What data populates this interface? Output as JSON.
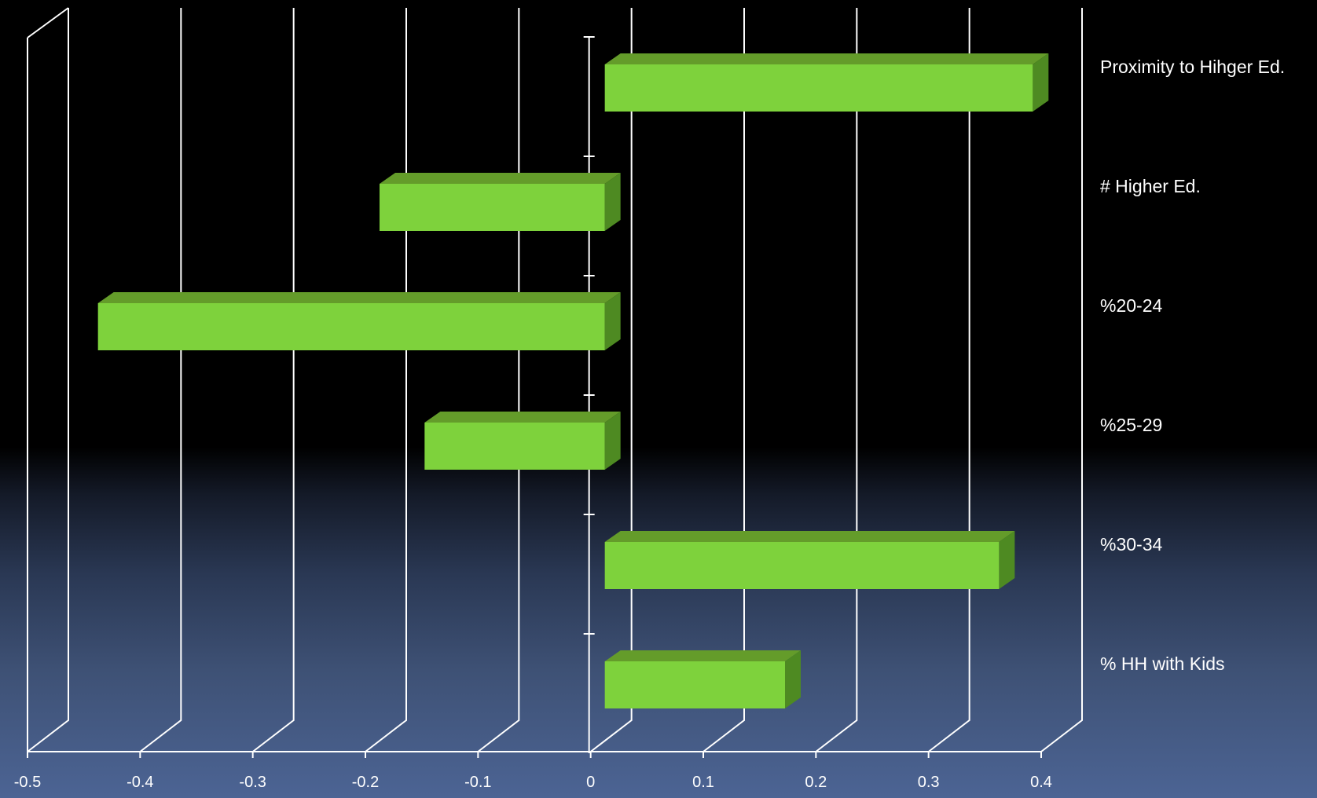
{
  "chart_data": {
    "type": "bar",
    "orientation": "horizontal",
    "style": "3d",
    "categories": [
      "Proximity to Hihger Ed.",
      "# Higher Ed.",
      "%20-24",
      "%25-29",
      "%30-34",
      "% HH with Kids"
    ],
    "values": [
      0.38,
      -0.2,
      -0.45,
      -0.16,
      0.35,
      0.16
    ],
    "xlim": [
      -0.5,
      0.4
    ],
    "xticks": [
      "-0.5",
      "-0.4",
      "-0.3",
      "-0.2",
      "-0.1",
      "0",
      "0.1",
      "0.2",
      "0.3",
      "0.4"
    ],
    "grid": true,
    "legend": "none",
    "colors": {
      "bar_front": "#7ed23c",
      "bar_top": "#649c2a",
      "bar_side": "#4e8a22",
      "grid": "#ffffff"
    }
  }
}
